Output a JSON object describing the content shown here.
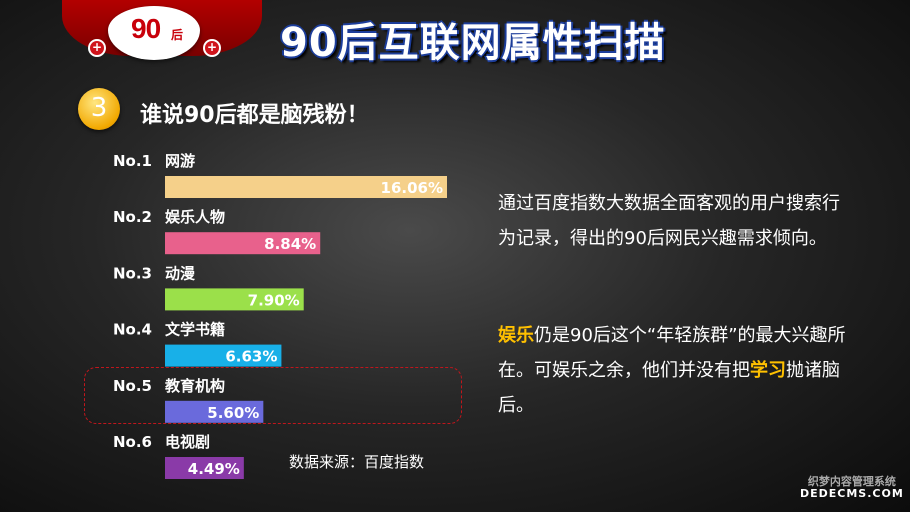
{
  "header": {
    "badge_text": "90",
    "badge_sub": "后",
    "plus": "+",
    "title": "90后互联网属性扫描"
  },
  "section": {
    "number": "3",
    "title": "谁说90后都是脑残粉！"
  },
  "chart_data": {
    "type": "bar",
    "orientation": "horizontal",
    "ranks": [
      "No.1",
      "No.2",
      "No.3",
      "No.4",
      "No.5",
      "No.6"
    ],
    "categories": [
      "网游",
      "娱乐人物",
      "动漫",
      "文学书籍",
      "教育机构",
      "电视剧"
    ],
    "values": [
      16.06,
      8.84,
      7.9,
      6.63,
      5.6,
      4.49
    ],
    "value_labels": [
      "16.06%",
      "8.84%",
      "7.90%",
      "6.63%",
      "5.60%",
      "4.49%"
    ],
    "colors": [
      "#f5d08a",
      "#e8618c",
      "#9be04a",
      "#18b0e8",
      "#6a6adc",
      "#8a3aa8"
    ],
    "highlighted_category": "教育机构",
    "source": "数据来源：百度指数"
  },
  "text": {
    "para1": "通过百度指数大数据全面客观的用户搜索行为记录，得出的90后网民兴趣需求倾向。",
    "para2_hl1": "娱乐",
    "para2_a": "仍是90后这个“年轻族群”的最大兴趣所在。可娱乐之余，他们并没有把",
    "para2_hl2": "学习",
    "para2_b": "抛诸脑后。",
    "highlight_color": "#ffc000"
  },
  "watermark": {
    "line1": "织梦内容管理系统",
    "line2": "DEDECMS.COM"
  }
}
